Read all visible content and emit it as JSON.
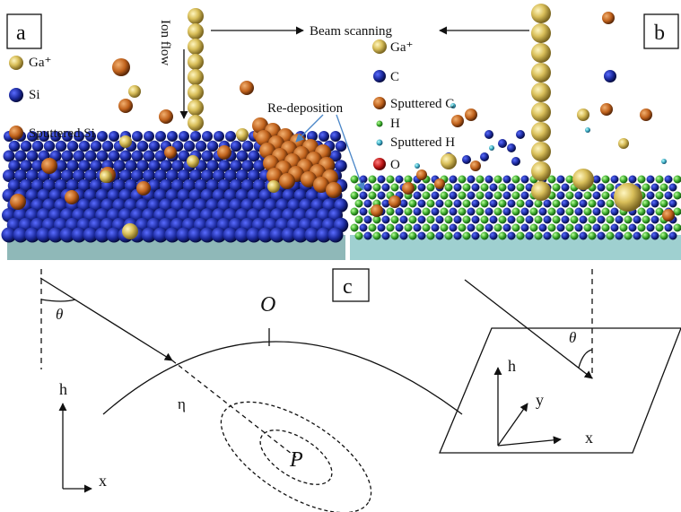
{
  "panel_a": {
    "label": "a",
    "ion_flow": "Ion flow",
    "legend": [
      "Ga⁺",
      "Si",
      "Sputtered Si"
    ]
  },
  "panel_b": {
    "label": "b",
    "legend": [
      "Ga⁺",
      "C",
      "Sputtered C",
      "H",
      "Sputtered H",
      "O"
    ]
  },
  "beam_scanning": "Beam scanning",
  "re_deposition": "Re-deposition",
  "panel_c": {
    "label": "c",
    "theta_left": "θ",
    "origin": "O",
    "eta": "η",
    "point": "P",
    "axes_left": {
      "h": "h",
      "x": "x"
    },
    "theta_right": "θ",
    "axes_right": {
      "h": "h",
      "y": "y",
      "x": "x"
    }
  }
}
